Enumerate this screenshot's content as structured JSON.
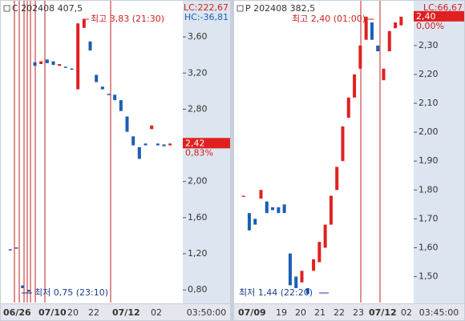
{
  "chart_data": [
    {
      "type": "candlestick",
      "title": "C 202408 407,5",
      "lc": "LC:222,67",
      "hc": "HC:-36,81",
      "ylim": [
        0.66,
        3.92
      ],
      "yticks": [
        {
          "value": 0.8,
          "label": "0,80"
        },
        {
          "value": 1.2,
          "label": "1,20"
        },
        {
          "value": 1.6,
          "label": "1,60"
        },
        {
          "value": 2.0,
          "label": "2,00"
        },
        {
          "value": 2.4,
          "label": "2,40"
        },
        {
          "value": 2.8,
          "label": "2,80"
        },
        {
          "value": 3.2,
          "label": "3,20"
        },
        {
          "value": 3.6,
          "label": "3,60"
        }
      ],
      "open": [
        1.25,
        1.27,
        0.85,
        0.8,
        3.32,
        3.3,
        3.35,
        3.33,
        3.28,
        3.27,
        3.25,
        3.02,
        3.7,
        3.55,
        3.18,
        3.05,
        2.97,
        2.96,
        2.9,
        2.72,
        2.5,
        2.38,
        2.42,
        2.58,
        2.42,
        2.41,
        2.4
      ],
      "close": [
        1.24,
        1.26,
        0.82,
        0.78,
        3.28,
        3.33,
        3.31,
        3.29,
        3.3,
        3.26,
        3.24,
        3.75,
        3.8,
        3.45,
        3.1,
        3.02,
        2.96,
        2.9,
        2.78,
        2.55,
        2.4,
        2.25,
        2.4,
        2.62,
        2.4,
        2.39,
        2.42
      ],
      "up_color": "#e02020",
      "down_color": "#1a5fb4",
      "last": {
        "value": 2.42,
        "label": "2,42"
      },
      "change": "0,83%",
      "high_note": "최고 3,83 (21:30)",
      "low_note": "최저 0,75 (23:10)",
      "x_labels": [
        "06/26",
        "07/10",
        "20",
        "22",
        "07/12",
        "02"
      ],
      "time_label": "03:50:00"
    },
    {
      "type": "candlestick",
      "title": "P 202408 382,5",
      "lc": "LC:66,67",
      "ylim": [
        1.41,
        2.43
      ],
      "yticks": [
        {
          "value": 1.5,
          "label": "1,50"
        },
        {
          "value": 1.6,
          "label": "1,60"
        },
        {
          "value": 1.7,
          "label": "1,70"
        },
        {
          "value": 1.8,
          "label": "1,80"
        },
        {
          "value": 1.9,
          "label": "1,90"
        },
        {
          "value": 2.0,
          "label": "2,00"
        },
        {
          "value": 2.1,
          "label": "2,10"
        },
        {
          "value": 2.2,
          "label": "2,20"
        },
        {
          "value": 2.3,
          "label": "2,30"
        }
      ],
      "open": [
        1.78,
        1.72,
        1.7,
        1.77,
        1.76,
        1.74,
        1.74,
        1.75,
        1.58,
        1.5,
        1.48,
        1.46,
        1.52,
        1.55,
        1.6,
        1.68,
        1.8,
        1.9,
        2.05,
        2.12,
        2.22,
        2.32,
        2.38,
        2.3,
        2.18,
        2.28,
        2.36,
        2.37
      ],
      "close": [
        1.78,
        1.66,
        1.68,
        1.8,
        1.72,
        1.73,
        1.72,
        1.72,
        1.47,
        1.46,
        1.52,
        1.44,
        1.56,
        1.62,
        1.68,
        1.78,
        1.88,
        2.02,
        2.12,
        2.2,
        2.3,
        2.4,
        2.32,
        2.28,
        2.22,
        2.35,
        2.38,
        2.4
      ],
      "up_color": "#e02020",
      "down_color": "#1a5fb4",
      "last": {
        "value": 2.4,
        "label": "2,40"
      },
      "change": "0,00%",
      "high_note": "최고 2,40 (01:00)",
      "low_note": "최저 1,44 (22:20)",
      "x_labels": [
        "07/09",
        "19",
        "20",
        "21",
        "22",
        "23",
        "07/12",
        "02"
      ],
      "time_label": "03:45:00"
    }
  ]
}
